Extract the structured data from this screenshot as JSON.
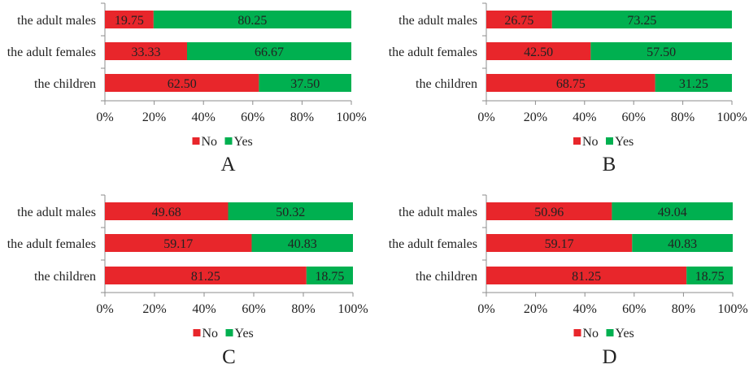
{
  "colors": {
    "no": "#e8262b",
    "yes": "#00b050",
    "axis": "#8c8c8c",
    "text": "#222222"
  },
  "chart_data": [
    {
      "panel": "A",
      "type": "bar",
      "orientation": "horizontal",
      "stacked": true,
      "categories": [
        "the adult males",
        "the adult females",
        "the children"
      ],
      "series": [
        {
          "name": "No",
          "values": [
            19.75,
            33.33,
            62.5
          ],
          "labels": [
            "19.75",
            "33.33",
            "62.50"
          ]
        },
        {
          "name": "Yes",
          "values": [
            80.25,
            66.67,
            37.5
          ],
          "labels": [
            "80.25",
            "66.67",
            "37.50"
          ]
        }
      ],
      "xticks": [
        "0%",
        "20%",
        "40%",
        "60%",
        "80%",
        "100%"
      ],
      "xlim": [
        0,
        100
      ],
      "legend_position": "bottom",
      "grid": false
    },
    {
      "panel": "B",
      "type": "bar",
      "orientation": "horizontal",
      "stacked": true,
      "categories": [
        "the adult males",
        "the adult females",
        "the children"
      ],
      "series": [
        {
          "name": "No",
          "values": [
            26.75,
            42.5,
            68.75
          ],
          "labels": [
            "26.75",
            "42.50",
            "68.75"
          ]
        },
        {
          "name": "Yes",
          "values": [
            73.25,
            57.5,
            31.25
          ],
          "labels": [
            "73.25",
            "57.50",
            "31.25"
          ]
        }
      ],
      "xticks": [
        "0%",
        "20%",
        "40%",
        "60%",
        "80%",
        "100%"
      ],
      "xlim": [
        0,
        100
      ],
      "legend_position": "bottom",
      "grid": false
    },
    {
      "panel": "C",
      "type": "bar",
      "orientation": "horizontal",
      "stacked": true,
      "categories": [
        "the adult males",
        "the adult females",
        "the children"
      ],
      "series": [
        {
          "name": "No",
          "values": [
            49.68,
            59.17,
            81.25
          ],
          "labels": [
            "49.68",
            "59.17",
            "81.25"
          ]
        },
        {
          "name": "Yes",
          "values": [
            50.32,
            40.83,
            18.75
          ],
          "labels": [
            "50.32",
            "40.83",
            "18.75"
          ]
        }
      ],
      "xticks": [
        "0%",
        "20%",
        "40%",
        "60%",
        "80%",
        "100%"
      ],
      "xlim": [
        0,
        100
      ],
      "legend_position": "bottom",
      "grid": false
    },
    {
      "panel": "D",
      "type": "bar",
      "orientation": "horizontal",
      "stacked": true,
      "categories": [
        "the adult males",
        "the adult females",
        "the children"
      ],
      "series": [
        {
          "name": "No",
          "values": [
            50.96,
            59.17,
            81.25
          ],
          "labels": [
            "50.96",
            "59.17",
            "81.25"
          ]
        },
        {
          "name": "Yes",
          "values": [
            49.04,
            40.83,
            18.75
          ],
          "labels": [
            "49.04",
            "40.83",
            "18.75"
          ]
        }
      ],
      "xticks": [
        "0%",
        "20%",
        "40%",
        "60%",
        "80%",
        "100%"
      ],
      "xlim": [
        0,
        100
      ],
      "legend_position": "bottom",
      "grid": false
    }
  ]
}
